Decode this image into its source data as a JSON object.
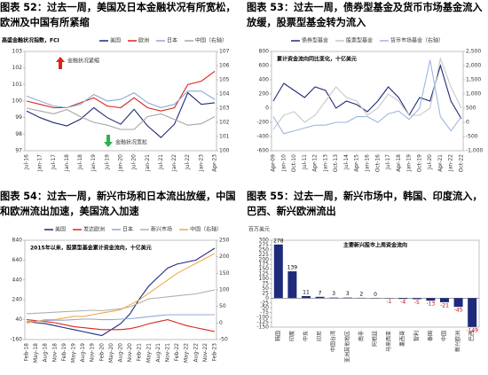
{
  "chart_data": [
    {
      "type": "line",
      "title": "图表 52：过去一周，美国及日本金融状况有所宽松，欧洲及中国有所紧缩",
      "subtitle": "高盛金融状况指数，FCI",
      "categories": [
        "Jul-16",
        "Jan-17",
        "Jul-17",
        "Jan-18",
        "Jul-18",
        "Jan-19",
        "Jul-19",
        "Jan-20",
        "Jul-20",
        "Jan-21",
        "Jul-21",
        "Jan-22",
        "Jul-22",
        "Jan-23",
        "Apr-23"
      ],
      "series": [
        {
          "name": "美国",
          "color": "#1f2a7a",
          "values": [
            99.4,
            99.0,
            98.7,
            98.5,
            98.9,
            99.6,
            99.0,
            98.6,
            99.5,
            98.5,
            97.8,
            98.6,
            100.5,
            99.8,
            99.9
          ]
        },
        {
          "name": "欧洲",
          "color": "#d9251c",
          "values": [
            100.0,
            99.8,
            99.6,
            99.6,
            99.9,
            100.2,
            99.7,
            99.6,
            100.2,
            99.6,
            99.4,
            99.6,
            101.0,
            101.2,
            101.8
          ]
        },
        {
          "name": "日本",
          "color": "#8fa9d6",
          "values": [
            100.3,
            100.0,
            99.7,
            99.6,
            99.8,
            100.4,
            100.0,
            100.1,
            100.5,
            99.9,
            99.6,
            99.8,
            100.6,
            100.6,
            100.1
          ]
        },
        {
          "name": "中国（右轴）",
          "color": "#a6a6a6",
          "axis": "y2",
          "values": [
            103.0,
            102.8,
            102.6,
            102.9,
            102.4,
            102.0,
            101.8,
            101.5,
            101.5,
            102.4,
            102.6,
            102.2,
            101.8,
            101.9,
            102.4
          ]
        }
      ],
      "ylim": [
        97,
        103
      ],
      "yticks": [
        97,
        98,
        99,
        100,
        101,
        102,
        103
      ],
      "y2lim": [
        100,
        107
      ],
      "y2ticks": [
        100,
        101,
        102,
        103,
        104,
        105,
        106,
        107
      ],
      "annotations": [
        "金融状况紧缩",
        "金融状况宽松"
      ]
    },
    {
      "type": "line",
      "title": "图表 53：过去一周，债券型基金及货币市场基金流入放缓，股票型基金转为流入",
      "subtitle": "累计资金流向同比变化，十亿美元",
      "categories": [
        "Apr-09",
        "Jan-10",
        "Oct-10",
        "Jul-11",
        "Apr-12",
        "Jan-13",
        "Oct-13",
        "Jul-14",
        "Apr-15",
        "Jan-16",
        "Oct-16",
        "Jul-17",
        "Apr-18",
        "Jan-19",
        "Oct-19",
        "Jul-20",
        "Apr-21",
        "Jan-22",
        "Oct-22"
      ],
      "series": [
        {
          "name": "债券型基金",
          "color": "#1f2a7a",
          "values": [
            100,
            350,
            250,
            150,
            300,
            250,
            0,
            100,
            50,
            -50,
            100,
            300,
            150,
            -100,
            150,
            100,
            600,
            100,
            -150
          ]
        },
        {
          "name": "股票型基金",
          "color": "#c9c9c9",
          "values": [
            -300,
            -100,
            -50,
            -200,
            -100,
            100,
            300,
            150,
            100,
            -100,
            0,
            200,
            100,
            -100,
            -100,
            0,
            700,
            300,
            0
          ]
        },
        {
          "name": "货币市场基金（右轴）",
          "color": "#9db7e0",
          "axis": "y2",
          "values": [
            200,
            -400,
            -300,
            -200,
            -100,
            -100,
            0,
            0,
            200,
            200,
            0,
            300,
            400,
            100,
            500,
            2200,
            200,
            -300,
            200
          ]
        }
      ],
      "ylim": [
        -600,
        800
      ],
      "yticks": [
        -600,
        -400,
        -200,
        0,
        200,
        400,
        600,
        800
      ],
      "y2lim": [
        -1000,
        2500
      ],
      "y2ticks": [
        {
          "value": -1000,
          "label": "-1,000"
        },
        -500,
        0,
        500,
        {
          "value": 1000,
          "label": "1,000"
        },
        {
          "value": 1500,
          "label": "1,500"
        },
        {
          "value": 2000,
          "label": "2,000"
        },
        {
          "value": 2500,
          "label": "2,500"
        }
      ]
    },
    {
      "type": "line",
      "title": "图表 54：过去一周，新兴市场和日本流出放缓，中国和欧洲流出加速，美国流入加速",
      "subtitle": "2015年以来，股票型基金累计资金流向，十亿美元",
      "categories": [
        "Feb-18",
        "May-18",
        "Aug-18",
        "Nov-18",
        "Feb-19",
        "May-19",
        "Aug-19",
        "Nov-19",
        "Feb-20",
        "May-20",
        "Aug-20",
        "Nov-20",
        "Feb-21",
        "May-21",
        "Aug-21",
        "Nov-21",
        "Feb-22",
        "May-22",
        "Aug-22",
        "Nov-22",
        "Feb-23"
      ],
      "series": [
        {
          "name": "美国",
          "color": "#1f2a7a",
          "values": [
            20,
            10,
            0,
            -20,
            -40,
            -60,
            -80,
            -100,
            -120,
            -60,
            0,
            100,
            250,
            380,
            470,
            560,
            600,
            620,
            640,
            700,
            760
          ]
        },
        {
          "name": "发达欧洲",
          "color": "#d9251c",
          "values": [
            40,
            30,
            20,
            10,
            -10,
            -30,
            -40,
            -50,
            -60,
            -60,
            -60,
            -50,
            -30,
            0,
            20,
            40,
            10,
            -20,
            -40,
            -60,
            -80
          ]
        },
        {
          "name": "日本",
          "color": "#8fa9d6",
          "values": [
            20,
            25,
            30,
            35,
            35,
            40,
            45,
            45,
            40,
            40,
            45,
            50,
            60,
            70,
            80,
            90,
            90,
            90,
            90,
            90,
            90
          ]
        },
        {
          "name": "新兴市场",
          "color": "#b0b0b0",
          "values": [
            100,
            105,
            110,
            115,
            120,
            125,
            130,
            135,
            130,
            140,
            150,
            170,
            210,
            250,
            260,
            270,
            280,
            290,
            300,
            320,
            340
          ]
        },
        {
          "name": "中国（右轴）",
          "color": "#f0a94a",
          "axis": "y2",
          "values": [
            0,
            5,
            10,
            10,
            15,
            20,
            20,
            25,
            30,
            35,
            40,
            55,
            70,
            90,
            110,
            130,
            150,
            165,
            180,
            195,
            210
          ]
        }
      ],
      "ylim": [
        -160,
        840
      ],
      "yticks": [
        -160,
        40,
        240,
        440,
        640,
        840
      ],
      "y2lim": [
        -50,
        250
      ],
      "y2ticks": [
        -50,
        0,
        50,
        100,
        150,
        200,
        250
      ]
    },
    {
      "type": "bar",
      "title": "图表 55：过去一周，新兴市场中，韩国、印度流入，巴西、新兴欧洲流出",
      "subtitle": "主要新兴股市上周资金流向",
      "y_label": "百万美元",
      "categories": [
        "韩国",
        "印度",
        "中东",
        "印尼",
        "中国台湾",
        "亚洲其他地区",
        "南非",
        "阿根廷",
        "马来西亚",
        "墨西哥",
        "智利",
        "泰国",
        "中国",
        "新兴欧洲",
        "巴西"
      ],
      "values": [
        278,
        139,
        11,
        7,
        3,
        3,
        2,
        0,
        -1,
        -4,
        -5,
        -13,
        -21,
        -45,
        -149
      ],
      "color": "#1f2a7a",
      "ylim": [
        -150,
        300
      ],
      "yticks": [
        -150,
        -125,
        -100,
        -75,
        -50,
        -25,
        0,
        25,
        50,
        75,
        100,
        125,
        150,
        175,
        200,
        225,
        250,
        275,
        300
      ]
    }
  ]
}
